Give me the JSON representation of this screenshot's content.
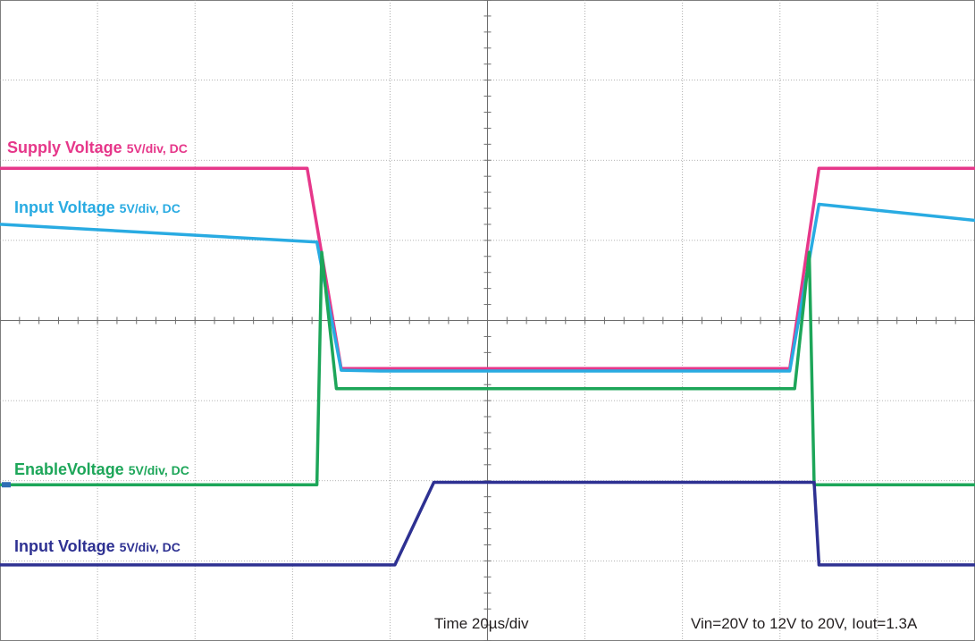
{
  "chart_data": {
    "type": "line",
    "x_divisions": 10,
    "y_divisions": 8,
    "grid": true,
    "series": [
      {
        "key": "supply",
        "name": "Supply Voltage",
        "scale": "5V/div, DC",
        "color": "#e6378a",
        "points": [
          [
            0,
            5.9
          ],
          [
            3.15,
            5.9
          ],
          [
            3.5,
            3.4
          ],
          [
            3.9,
            3.4
          ],
          [
            8.1,
            3.4
          ],
          [
            8.4,
            5.9
          ],
          [
            10,
            5.9
          ]
        ]
      },
      {
        "key": "input_top",
        "name": "Input Voltage",
        "scale": "5V/div, DC",
        "color": "#29abe2",
        "points": [
          [
            0,
            5.2
          ],
          [
            3.25,
            4.98
          ],
          [
            3.5,
            3.38
          ],
          [
            3.9,
            3.37
          ],
          [
            8.1,
            3.37
          ],
          [
            8.4,
            5.45
          ],
          [
            10,
            5.25
          ]
        ]
      },
      {
        "key": "enable",
        "name": "EnableVoltage",
        "scale": "5V/div, DC",
        "color": "#1da659",
        "points": [
          [
            0,
            1.95
          ],
          [
            3.25,
            1.95
          ],
          [
            3.3,
            4.85
          ],
          [
            3.45,
            3.15
          ],
          [
            8.15,
            3.15
          ],
          [
            8.3,
            4.85
          ],
          [
            8.35,
            1.95
          ],
          [
            10,
            1.95
          ]
        ]
      },
      {
        "key": "input_bottom",
        "name": "Input Voltage",
        "scale": "5V/div, DC",
        "color": "#2e3192",
        "points": [
          [
            0,
            0.95
          ],
          [
            4.05,
            0.95
          ],
          [
            4.45,
            1.98
          ],
          [
            8.35,
            1.98
          ],
          [
            8.4,
            0.95
          ],
          [
            10,
            0.95
          ]
        ]
      }
    ],
    "time_scale": "Time 20µs/div",
    "conditions": "Vin=20V to 12V to 20V, Iout=1.3A"
  }
}
